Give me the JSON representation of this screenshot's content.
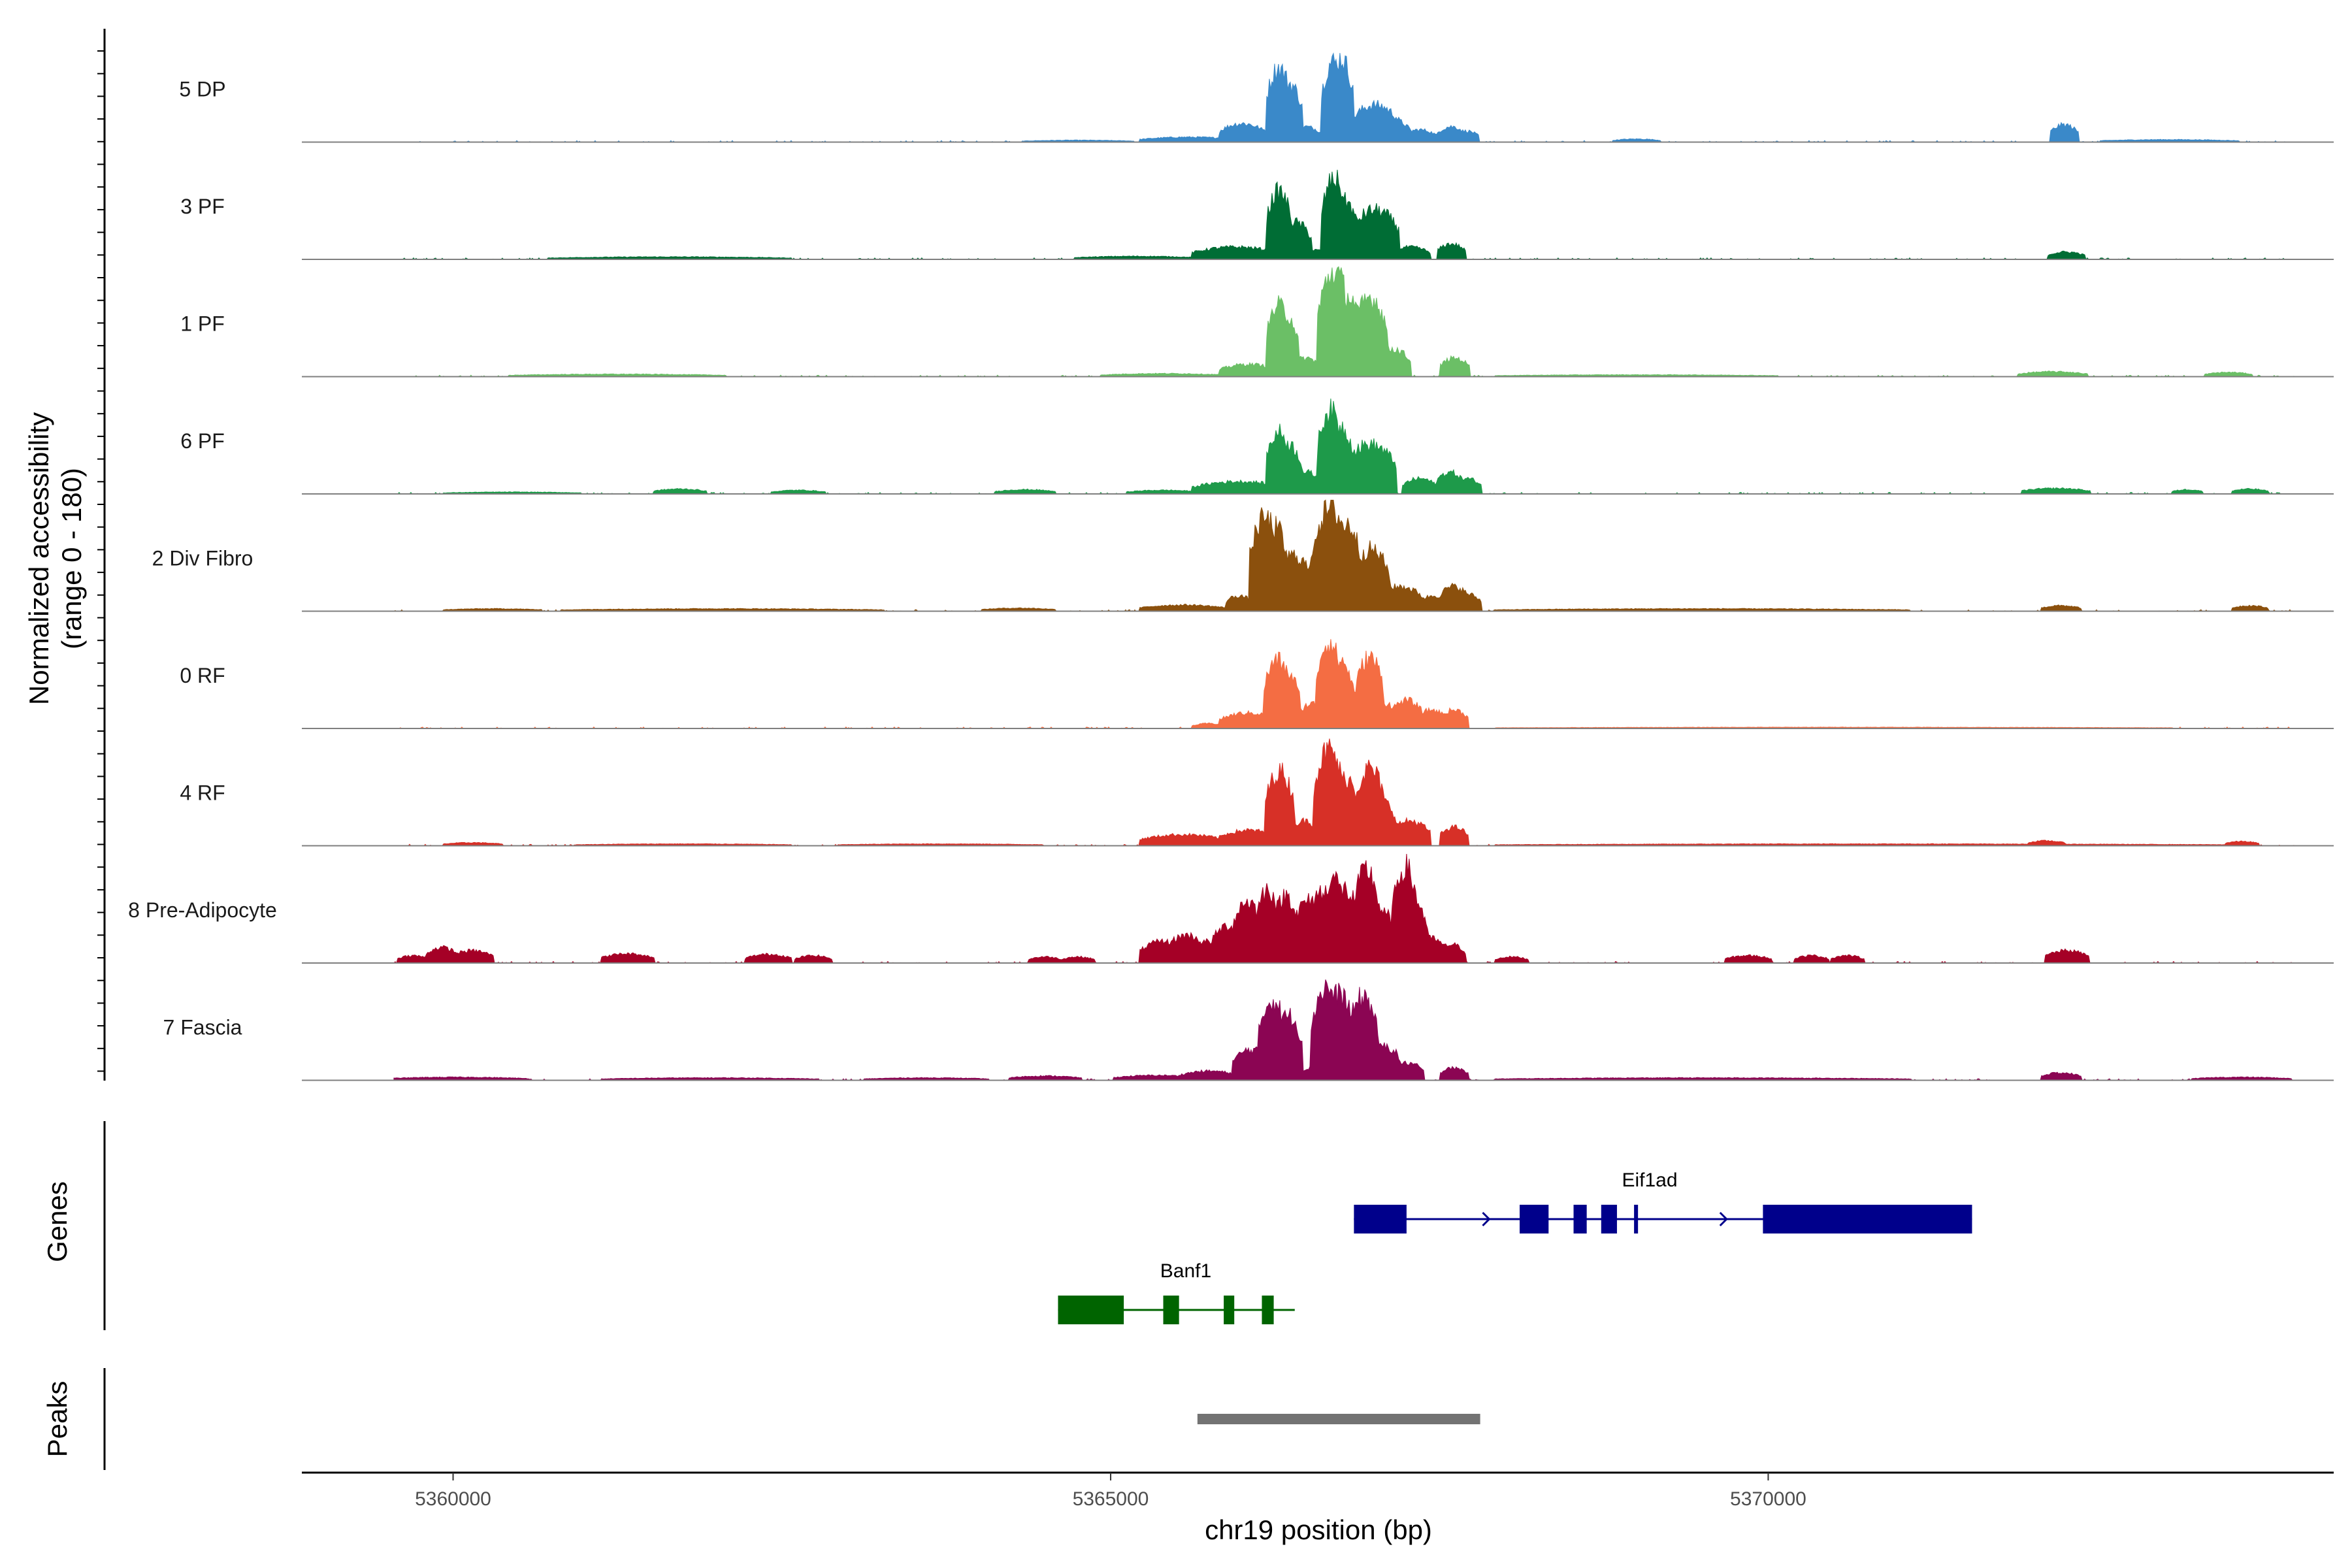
{
  "chart_data": {
    "type": "area",
    "chromosome": "chr19",
    "y_axis_title": "Normalized accessibility",
    "y_axis_subtitle": "(range 0 - 180)",
    "y_range": [
      0,
      180
    ],
    "x_axis_title": "chr19 position (bp)",
    "x_range": [
      5358850,
      5374300
    ],
    "x_ticks": [
      5360000,
      5365000,
      5370000
    ],
    "x_tick_labels": [
      "5360000",
      "5365000",
      "5370000"
    ],
    "region_start": 5358850,
    "region_end": 5374300,
    "tracks": [
      {
        "name": "5 DP",
        "color": "#3a89c9",
        "start": 5359550,
        "end": 5374000,
        "peaks": [
          [
            5364400,
            5365100,
            3
          ],
          [
            5365300,
            5365900,
            8
          ],
          [
            5365900,
            5366100,
            30
          ],
          [
            5366050,
            5366250,
            20
          ],
          [
            5366260,
            5366300,
            120
          ],
          [
            5366330,
            5366380,
            95
          ],
          [
            5366420,
            5366530,
            25
          ],
          [
            5366680,
            5366700,
            130
          ],
          [
            5366710,
            5366720,
            110
          ],
          [
            5366730,
            5366770,
            135
          ],
          [
            5366900,
            5367120,
            60
          ],
          [
            5367130,
            5367200,
            35
          ],
          [
            5367300,
            5367400,
            20
          ],
          [
            5367560,
            5367620,
            25
          ],
          [
            5367690,
            5367720,
            18
          ],
          [
            5368900,
            5369100,
            5
          ],
          [
            5372220,
            5372280,
            28
          ],
          [
            5372600,
            5373500,
            4
          ]
        ]
      },
      {
        "name": "3 PF",
        "color": "#006d35",
        "start": 5359550,
        "end": 5374000,
        "peaks": [
          [
            5360800,
            5362500,
            4
          ],
          [
            5364800,
            5365600,
            5
          ],
          [
            5365700,
            5366200,
            20
          ],
          [
            5366260,
            5366300,
            110
          ],
          [
            5366350,
            5366450,
            60
          ],
          [
            5366500,
            5366600,
            15
          ],
          [
            5366680,
            5366720,
            130
          ],
          [
            5366760,
            5366800,
            95
          ],
          [
            5366900,
            5367120,
            80
          ],
          [
            5367200,
            5367350,
            20
          ],
          [
            5367560,
            5367620,
            25
          ],
          [
            5372200,
            5372330,
            12
          ]
        ]
      },
      {
        "name": "1 PF",
        "color": "#6bbf66",
        "start": 5359550,
        "end": 5374000,
        "peaks": [
          [
            5360500,
            5362000,
            4
          ],
          [
            5365000,
            5365800,
            5
          ],
          [
            5365900,
            5366200,
            20
          ],
          [
            5366260,
            5366300,
            115
          ],
          [
            5366330,
            5366350,
            100
          ],
          [
            5366430,
            5366530,
            30
          ],
          [
            5366650,
            5366750,
            170
          ],
          [
            5366790,
            5366830,
            130
          ],
          [
            5366920,
            5367030,
            128
          ],
          [
            5367090,
            5367200,
            45
          ],
          [
            5367580,
            5367650,
            30
          ],
          [
            5368000,
            5370000,
            3
          ],
          [
            5371980,
            5372350,
            8
          ],
          [
            5373400,
            5373600,
            7
          ]
        ]
      },
      {
        "name": "6 PF",
        "color": "#1e9a4a",
        "start": 5359550,
        "end": 5374000,
        "peaks": [
          [
            5360000,
            5360900,
            3
          ],
          [
            5361600,
            5361850,
            8
          ],
          [
            5362500,
            5362750,
            6
          ],
          [
            5364200,
            5364500,
            7
          ],
          [
            5365200,
            5365600,
            6
          ],
          [
            5365700,
            5366250,
            20
          ],
          [
            5366260,
            5366300,
            100
          ],
          [
            5366320,
            5366380,
            80
          ],
          [
            5366460,
            5366520,
            35
          ],
          [
            5366650,
            5366690,
            135
          ],
          [
            5366700,
            5366780,
            110
          ],
          [
            5366840,
            5367100,
            80
          ],
          [
            5367300,
            5367400,
            25
          ],
          [
            5367550,
            5367610,
            35
          ],
          [
            5367670,
            5367740,
            25
          ],
          [
            5372000,
            5372370,
            9
          ],
          [
            5373150,
            5373230,
            7
          ],
          [
            5373600,
            5373720,
            8
          ]
        ]
      },
      {
        "name": "2 Div Fibro",
        "color": "#8b500d",
        "start": 5359550,
        "end": 5374000,
        "peaks": [
          [
            5360000,
            5360600,
            4
          ],
          [
            5360900,
            5363200,
            4
          ],
          [
            5364100,
            5364500,
            5
          ],
          [
            5365300,
            5365800,
            10
          ],
          [
            5365950,
            5366000,
            25
          ],
          [
            5366130,
            5366220,
            150
          ],
          [
            5366240,
            5366270,
            135
          ],
          [
            5366300,
            5366470,
            90
          ],
          [
            5366600,
            5366750,
            165
          ],
          [
            5366780,
            5366830,
            140
          ],
          [
            5366900,
            5367050,
            100
          ],
          [
            5367100,
            5367300,
            40
          ],
          [
            5367420,
            5367500,
            25
          ],
          [
            5367570,
            5367650,
            40
          ],
          [
            5367670,
            5367740,
            28
          ],
          [
            5368000,
            5371000,
            4
          ],
          [
            5372150,
            5372300,
            9
          ],
          [
            5373600,
            5373720,
            9
          ]
        ]
      },
      {
        "name": "0 RF",
        "color": "#f46d43",
        "start": 5359550,
        "end": 5374000,
        "peaks": [
          [
            5365700,
            5365800,
            8
          ],
          [
            5365900,
            5366200,
            25
          ],
          [
            5366240,
            5366300,
            110
          ],
          [
            5366330,
            5366360,
            90
          ],
          [
            5366500,
            5366560,
            40
          ],
          [
            5366640,
            5366680,
            140
          ],
          [
            5366720,
            5366770,
            110
          ],
          [
            5366820,
            5366870,
            60
          ],
          [
            5366940,
            5367000,
            115
          ],
          [
            5367070,
            5367120,
            40
          ],
          [
            5367200,
            5367300,
            45
          ],
          [
            5367400,
            5367480,
            30
          ],
          [
            5367580,
            5367640,
            30
          ],
          [
            5368000,
            5373000,
            2
          ]
        ]
      },
      {
        "name": "4 RF",
        "color": "#d73027",
        "start": 5359550,
        "end": 5374000,
        "peaks": [
          [
            5360000,
            5360300,
            5
          ],
          [
            5361000,
            5362500,
            3
          ],
          [
            5363000,
            5364400,
            3
          ],
          [
            5365300,
            5365800,
            18
          ],
          [
            5365900,
            5366200,
            25
          ],
          [
            5366250,
            5366320,
            120
          ],
          [
            5366430,
            5366520,
            40
          ],
          [
            5366620,
            5366700,
            155
          ],
          [
            5366760,
            5366820,
            110
          ],
          [
            5366930,
            5367010,
            125
          ],
          [
            5367050,
            5367100,
            70
          ],
          [
            5367200,
            5367350,
            40
          ],
          [
            5367580,
            5367640,
            30
          ],
          [
            5368000,
            5373500,
            3
          ],
          [
            5372050,
            5372180,
            8
          ],
          [
            5373550,
            5373650,
            7
          ]
        ]
      },
      {
        "name": "8 Pre-Adipocyte",
        "color": "#a50026",
        "start": 5359550,
        "end": 5374000,
        "peaks": [
          [
            5359650,
            5359740,
            12
          ],
          [
            5359870,
            5359960,
            25
          ],
          [
            5360060,
            5360230,
            20
          ],
          [
            5361200,
            5361450,
            15
          ],
          [
            5362300,
            5362500,
            14
          ],
          [
            5362680,
            5362800,
            12
          ],
          [
            5364450,
            5364550,
            10
          ],
          [
            5364700,
            5364800,
            10
          ],
          [
            5365300,
            5365500,
            35
          ],
          [
            5365500,
            5365650,
            45
          ],
          [
            5365700,
            5365770,
            35
          ],
          [
            5365840,
            5365950,
            60
          ],
          [
            5366000,
            5366080,
            100
          ],
          [
            5366180,
            5366210,
            120
          ],
          [
            5366320,
            5366350,
            110
          ],
          [
            5366370,
            5366400,
            85
          ],
          [
            5366470,
            5366520,
            100
          ],
          [
            5366570,
            5366600,
            115
          ],
          [
            5366680,
            5366700,
            140
          ],
          [
            5366740,
            5366800,
            120
          ],
          [
            5366820,
            5366860,
            105
          ],
          [
            5366920,
            5366970,
            150
          ],
          [
            5366990,
            5367020,
            100
          ],
          [
            5367050,
            5367100,
            80
          ],
          [
            5367220,
            5367260,
            155
          ],
          [
            5367300,
            5367330,
            100
          ],
          [
            5367400,
            5367470,
            40
          ],
          [
            5367560,
            5367620,
            30
          ],
          [
            5368000,
            5368100,
            10
          ],
          [
            5369750,
            5369950,
            12
          ],
          [
            5370280,
            5370380,
            12
          ],
          [
            5370550,
            5370650,
            12
          ],
          [
            5372180,
            5372360,
            20
          ]
        ]
      },
      {
        "name": "7 Fascia",
        "color": "#8b0553",
        "start": 5359550,
        "end": 5374000,
        "peaks": [
          [
            5359550,
            5360500,
            5
          ],
          [
            5361200,
            5362700,
            4
          ],
          [
            5363200,
            5364000,
            4
          ],
          [
            5364300,
            5364700,
            7
          ],
          [
            5365100,
            5365600,
            8
          ],
          [
            5365600,
            5365900,
            15
          ],
          [
            5366000,
            5366150,
            50
          ],
          [
            5366200,
            5366260,
            130
          ],
          [
            5366320,
            5366380,
            105
          ],
          [
            5366500,
            5366560,
            20
          ],
          [
            5366600,
            5366680,
            150
          ],
          [
            5366700,
            5366780,
            140
          ],
          [
            5366880,
            5366960,
            135
          ],
          [
            5367050,
            5367130,
            55
          ],
          [
            5367220,
            5367300,
            28
          ],
          [
            5367580,
            5367640,
            20
          ],
          [
            5368000,
            5371000,
            4
          ],
          [
            5372150,
            5372300,
            12
          ],
          [
            5373300,
            5373900,
            5
          ]
        ]
      }
    ],
    "genes": [
      {
        "name": "Eif1ad",
        "strand": "+",
        "color": "#00008b",
        "start": 5366850,
        "end": 5371550,
        "exons": [
          [
            5366850,
            5367250
          ],
          [
            5368110,
            5368330
          ],
          [
            5368520,
            5368620
          ],
          [
            5368730,
            5368850
          ],
          [
            5368980,
            5369010
          ],
          [
            5369960,
            5371550
          ]
        ]
      },
      {
        "name": "Banf1",
        "strand": "-",
        "color": "#006400",
        "start": 5364600,
        "end": 5366400,
        "exons": [
          [
            5364600,
            5365100
          ],
          [
            5365400,
            5365520
          ],
          [
            5365860,
            5365940
          ],
          [
            5366150,
            5366240
          ]
        ]
      }
    ],
    "peaks_track": [
      {
        "start": 5365660,
        "end": 5367810,
        "color": "#737373"
      }
    ],
    "panel_labels": {
      "genes": "Genes",
      "peaks": "Peaks"
    }
  }
}
